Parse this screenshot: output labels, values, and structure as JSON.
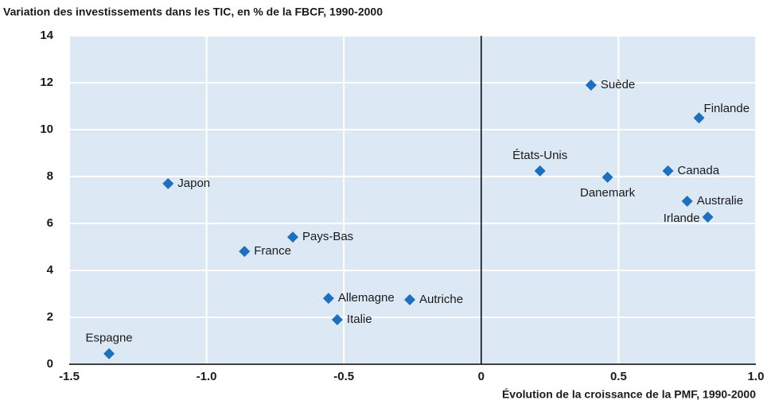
{
  "chart_data": {
    "type": "scatter",
    "title": "Variation des investissements dans les TIC, en % de la FBCF, 1990-2000",
    "x_label": "Évolution de la croissance de la PMF, 1990-2000",
    "labels": [
      "Espagne",
      "Japon",
      "Pays-Bas",
      "France",
      "Allemagne",
      "Italie",
      "Autriche",
      "États-Unis",
      "Suède",
      "Danemark",
      "Finlande",
      "Canada",
      "Australie",
      "Irlande"
    ],
    "x": [
      -1.355,
      -1.14,
      -0.686,
      -0.862,
      -0.556,
      -0.524,
      -0.26,
      0.214,
      0.4,
      0.46,
      0.793,
      0.68,
      0.75,
      0.825
    ],
    "values": [
      0.45,
      7.7,
      5.42,
      4.81,
      2.81,
      1.9,
      2.75,
      8.24,
      11.9,
      7.97,
      10.5,
      8.24,
      6.95,
      6.27
    ],
    "color": "#1f6fbf",
    "xlim": [
      -1.5,
      1.0
    ],
    "xticks": [
      -1.5,
      {
        "value": -1.0,
        "label": "-1.0"
      },
      -0.5,
      0,
      0.5,
      {
        "value": 1.0,
        "label": "1.0"
      }
    ],
    "ylim": [
      0,
      14
    ],
    "yticks": [
      0,
      2,
      4,
      6,
      8,
      10,
      12,
      14
    ],
    "grid": true
  }
}
